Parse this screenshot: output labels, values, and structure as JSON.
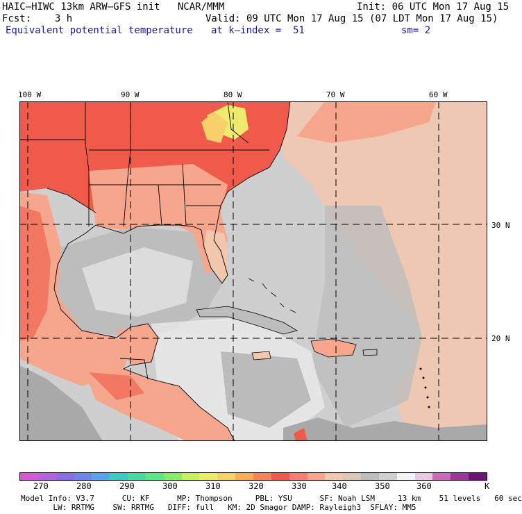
{
  "header": {
    "model_line": "HAIC–HIWC 13km ARW–GFS init   NCAR/MMM",
    "init_line": "Init: 06 UTC Mon 17 Aug 15",
    "fcst_line": "Fcst:    3 h",
    "valid_line": "Valid: 09 UTC Mon 17 Aug 15 (07 LDT Mon 17 Aug 15)",
    "field": "Equivalent potential temperature",
    "level": "at k–index =  51",
    "smoothing": "sm= 2"
  },
  "map": {
    "longitudes": [
      "100 W",
      "90 W",
      "80 W",
      "70 W",
      "60 W"
    ],
    "latitudes": [
      "30 N",
      "20 N"
    ],
    "colors": {
      "land_hot": "#f05a4a",
      "land_warm": "#f6a68c",
      "ocean_warm": "#f3c7ae",
      "ocean_mid": "#cfcfcf",
      "ocean_gray": "#a9a9a9",
      "ocean_light": "#eaeaea",
      "land_yellow": "#eeea6e"
    }
  },
  "colorbar": {
    "colors": [
      "#d35bd2",
      "#b463d8",
      "#8c6ee0",
      "#6e87e6",
      "#5aa3e9",
      "#41c7c4",
      "#4ad8a2",
      "#5ee586",
      "#87ec6e",
      "#c6ee63",
      "#eeea6e",
      "#f8cf6a",
      "#f6ae5c",
      "#f4825a",
      "#f05a4a",
      "#f27f72",
      "#f6a68c",
      "#f3c7ae",
      "#d9c7b8",
      "#bdbdbd",
      "#cfcfcf",
      "#f3f3f3",
      "#e9c8e6",
      "#c86bb9",
      "#9a3a98",
      "#6e137a"
    ],
    "ticks": [
      "270",
      "280",
      "290",
      "300",
      "310",
      "320",
      "330",
      "340",
      "350",
      "360"
    ],
    "unit": "K"
  },
  "footer": {
    "line1": "Model Info: V3.7      CU: KF      MP: Thompson     PBL: YSU      SF: Noah LSM     13 km    51 levels   60 sec",
    "line2": "       LW: RRTMG    SW: RRTMG   DIFF: full   KM: 2D Smagor DAMP: Rayleigh3  SFLAY: MM5"
  }
}
